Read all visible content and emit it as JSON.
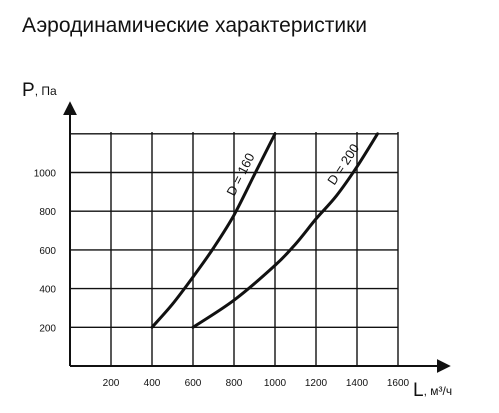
{
  "page": {
    "title": "Аэродинамические характеристики"
  },
  "chart_data": {
    "type": "line",
    "title": "Аэродинамические характеристики",
    "xlabel": {
      "symbol": "L",
      "unit": ", м³/ч"
    },
    "ylabel": {
      "symbol": "P",
      "unit": ", Па"
    },
    "xlim": [
      0,
      1600
    ],
    "ylim": [
      0,
      1200
    ],
    "xticks": [
      200,
      400,
      600,
      800,
      1000,
      1200,
      1400,
      1600
    ],
    "yticks": [
      200,
      400,
      600,
      800,
      1000
    ],
    "grid": true,
    "legend": "none",
    "series": [
      {
        "name": "D = 160",
        "points": [
          [
            400,
            200
          ],
          [
            500,
            320
          ],
          [
            600,
            460
          ],
          [
            700,
            610
          ],
          [
            800,
            780
          ],
          [
            900,
            990
          ],
          [
            1000,
            1200
          ]
        ]
      },
      {
        "name": "D = 200",
        "points": [
          [
            600,
            200
          ],
          [
            800,
            340
          ],
          [
            1000,
            520
          ],
          [
            1100,
            630
          ],
          [
            1200,
            760
          ],
          [
            1300,
            880
          ],
          [
            1400,
            1030
          ],
          [
            1500,
            1200
          ]
        ]
      }
    ]
  }
}
